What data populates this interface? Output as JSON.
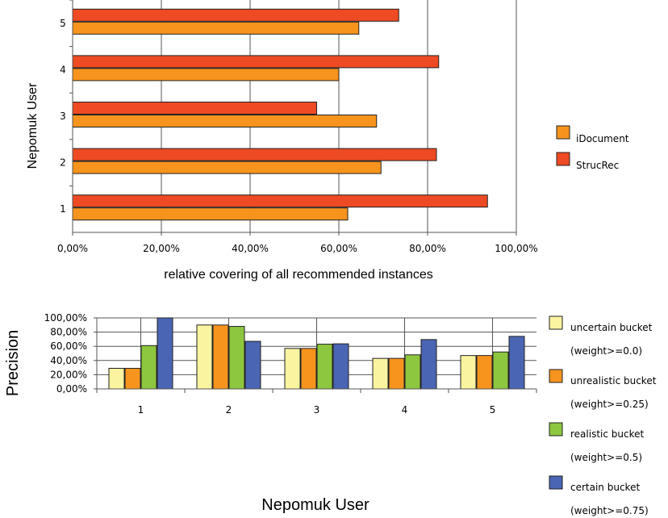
{
  "chart_data": [
    {
      "type": "bar",
      "orientation": "horizontal",
      "categories": [
        "1",
        "2",
        "3",
        "4",
        "5"
      ],
      "series": [
        {
          "name": "iDocument",
          "color": "#F7941D",
          "values": [
            62,
            69.5,
            68.5,
            60,
            64.5
          ]
        },
        {
          "name": "StrucRec",
          "color": "#EE4A23",
          "values": [
            93.5,
            82,
            55,
            82.5,
            73.5
          ]
        }
      ],
      "x_ticks": [
        "0,00%",
        "20,00%",
        "40,00%",
        "60,00%",
        "80,00%",
        "100,00%"
      ],
      "xlabel": "relative covering of all recommended instances",
      "ylabel": "Nepomuk User",
      "xlim": [
        0,
        100
      ],
      "grid": true,
      "legend_position": "right"
    },
    {
      "type": "bar",
      "orientation": "vertical",
      "categories": [
        "1",
        "2",
        "3",
        "4",
        "5"
      ],
      "series": [
        {
          "name": "uncertain bucket",
          "name_detail": "(weight>=0.0)",
          "color": "#FAF3A0",
          "values": [
            29,
            90,
            57,
            43,
            47
          ]
        },
        {
          "name": "unrealistic bucket",
          "name_detail": "(weight>=0.25)",
          "color": "#F7941D",
          "values": [
            29,
            90,
            57,
            43,
            47
          ]
        },
        {
          "name": "realistic bucket",
          "name_detail": "(weight>=0.5)",
          "color": "#8DC63F",
          "values": [
            61,
            88,
            63,
            48,
            52
          ]
        },
        {
          "name": "certain bucket",
          "name_detail": "(weight>=0.75)",
          "color": "#4A65B3",
          "values": [
            100,
            67,
            63.5,
            69.5,
            74
          ]
        }
      ],
      "y_ticks": [
        "0,00%",
        "20,00%",
        "40,00%",
        "60,00%",
        "80,00%",
        "100,00%"
      ],
      "xlabel": "Nepomuk User",
      "ylabel": "Precision",
      "ylim": [
        0,
        100
      ],
      "grid": true,
      "legend_position": "right"
    }
  ]
}
